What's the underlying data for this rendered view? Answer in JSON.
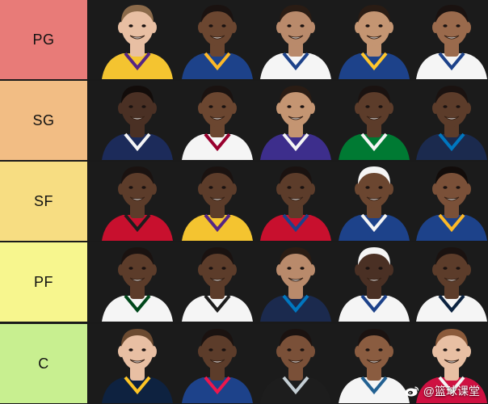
{
  "colors": {
    "background": "#1a1a1a",
    "tier_pg": "#e87b78",
    "tier_sg": "#f2bd84",
    "tier_sf": "#f7dd82",
    "tier_pf": "#f7f68e",
    "tier_c": "#c8ef90"
  },
  "tiers": [
    {
      "label": "PG",
      "players": [
        {
          "skin": "#e8bfa3",
          "hair": "#8b6a4a",
          "jersey": "#f4c430",
          "trim": "#552583"
        },
        {
          "skin": "#6b4630",
          "hair": "#1a1210",
          "jersey": "#1d428a",
          "trim": "#fdb927"
        },
        {
          "skin": "#b98a6b",
          "hair": "#2a1c14",
          "jersey": "#f5f5f5",
          "trim": "#1d428a"
        },
        {
          "skin": "#c49572",
          "hair": "#2a1c14",
          "jersey": "#1d428a",
          "trim": "#ffc72c"
        },
        {
          "skin": "#9a6a4c",
          "hair": "#1a1210",
          "jersey": "#f5f5f5",
          "trim": "#1d428a"
        }
      ]
    },
    {
      "label": "SG",
      "players": [
        {
          "skin": "#4a3024",
          "hair": "#120c0a",
          "jersey": "#1c2b5a",
          "trim": "#f5f5f5"
        },
        {
          "skin": "#6b4630",
          "hair": "#1a1210",
          "jersey": "#f5f5f5",
          "trim": "#98002e"
        },
        {
          "skin": "#c49572",
          "hair": "#2a1c14",
          "jersey": "#3d2e8c",
          "trim": "#f5f5f5"
        },
        {
          "skin": "#5c3c2a",
          "hair": "#1a1210",
          "jersey": "#007a33",
          "trim": "#f5f5f5"
        },
        {
          "skin": "#5c3c2a",
          "hair": "#1a1210",
          "jersey": "#1b2a4e",
          "trim": "#0077c0"
        }
      ]
    },
    {
      "label": "SF",
      "players": [
        {
          "skin": "#5c3c2a",
          "hair": "#1a1210",
          "jersey": "#c8102e",
          "trim": "#1d1d1d"
        },
        {
          "skin": "#5c3c2a",
          "hair": "#1a1210",
          "jersey": "#f4c430",
          "trim": "#552583"
        },
        {
          "skin": "#5c3c2a",
          "hair": "#1a1210",
          "jersey": "#c8102e",
          "trim": "#1d428a"
        },
        {
          "skin": "#6b4630",
          "hair": "#f5f5f5",
          "jersey": "#1d428a",
          "trim": "#f5f5f5"
        },
        {
          "skin": "#7a5038",
          "hair": "#120c0a",
          "jersey": "#1d428a",
          "trim": "#fdb927"
        }
      ]
    },
    {
      "label": "PF",
      "players": [
        {
          "skin": "#5c3c2a",
          "hair": "#1a1210",
          "jersey": "#f5f5f5",
          "trim": "#00471b"
        },
        {
          "skin": "#5c3c2a",
          "hair": "#1a1210",
          "jersey": "#f5f5f5",
          "trim": "#1d1d1d"
        },
        {
          "skin": "#b98a6b",
          "hair": "#2a1c14",
          "jersey": "#1b2a4e",
          "trim": "#0077c0"
        },
        {
          "skin": "#4a3024",
          "hair": "#f5f5f5",
          "jersey": "#f5f5f5",
          "trim": "#1d428a"
        },
        {
          "skin": "#5c3c2a",
          "hair": "#1a1210",
          "jersey": "#f5f5f5",
          "trim": "#0c2340"
        }
      ]
    },
    {
      "label": "C",
      "players": [
        {
          "skin": "#e8bfa3",
          "hair": "#6b4a30",
          "jersey": "#0e2240",
          "trim": "#fec524"
        },
        {
          "skin": "#5c3c2a",
          "hair": "#1a1210",
          "jersey": "#1d428a",
          "trim": "#ed174c"
        },
        {
          "skin": "#7a5038",
          "hair": "#1a1210",
          "jersey": "#1d1d1d",
          "trim": "#c4ced4"
        },
        {
          "skin": "#8a5c40",
          "hair": "#1a1210",
          "jersey": "#f5f5f5",
          "trim": "#236192"
        },
        {
          "skin": "#e8bfa3",
          "hair": "#8b5a3a",
          "jersey": "#ce1141",
          "trim": "#f5f5f5"
        }
      ]
    }
  ],
  "watermark": {
    "text": "@篮球课堂",
    "icon": "weibo-icon"
  }
}
